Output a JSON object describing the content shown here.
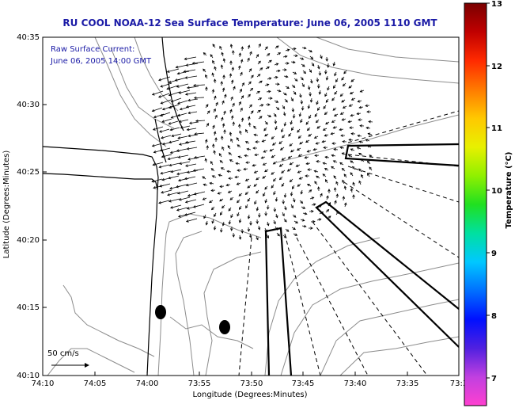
{
  "title": "RU COOL  NOAA-12  Sea Surface Temperature:  June 06, 2005 1110 GMT",
  "inset": {
    "line1": "Raw Surface Current:",
    "line2": "June 06, 2005 14:00 GMT"
  },
  "scale_label": "50 cm/s",
  "map": {
    "xlabel": "Longitude (Degrees:Minutes)",
    "ylabel": "Latitude (Degrees:Minutes)",
    "x_ticks": [
      "74:10",
      "74:05",
      "74:00",
      "73:55",
      "73:50",
      "73:45",
      "73:40",
      "73:35",
      "73:3"
    ],
    "y_ticks": [
      "40:35",
      "40:30",
      "40:25",
      "40:20",
      "40:15",
      "40:10"
    ]
  },
  "colorbar": {
    "label": "Temperature (°C)",
    "ticks": [
      "13",
      "12",
      "11",
      "10",
      "9",
      "8",
      "7"
    ],
    "colors": [
      "#7a0000",
      "#c00000",
      "#ff2a00",
      "#ff7a00",
      "#ffc800",
      "#e8f000",
      "#90f000",
      "#20e020",
      "#00e0a0",
      "#00c8ff",
      "#0070ff",
      "#0010ff",
      "#5020e0",
      "#c040e0",
      "#ff40d0"
    ]
  },
  "colors": {
    "title": "#1a1aa6",
    "frame": "#000000",
    "contours": "#8c8c8c"
  }
}
